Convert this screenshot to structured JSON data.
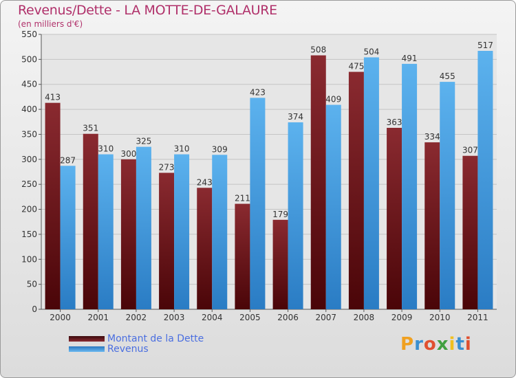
{
  "title": "Revenus/Dette - LA MOTTE-DE-GALAURE",
  "subtitle": "(en milliers d'€)",
  "legend": {
    "dette": "Montant de la Dette",
    "revenus": "Revenus"
  },
  "logo": {
    "text": "Proxiti",
    "letters": [
      {
        "ch": "P",
        "color": "#f0a020"
      },
      {
        "ch": "r",
        "color": "#3a8fd0"
      },
      {
        "ch": "o",
        "color": "#e05030"
      },
      {
        "ch": "x",
        "color": "#40a040"
      },
      {
        "ch": "i",
        "color": "#f0c020"
      },
      {
        "ch": "t",
        "color": "#3a8fd0"
      },
      {
        "ch": "i",
        "color": "#e05030"
      }
    ]
  },
  "colors": {
    "dette": "#7a1c22",
    "revenus": "#4ba3e3",
    "title": "#b0306a",
    "legend_text": "#4a6ee0"
  },
  "chart_data": {
    "type": "bar",
    "title": "Revenus/Dette - LA MOTTE-DE-GALAURE",
    "subtitle": "(en milliers d'€)",
    "xlabel": "",
    "ylabel": "",
    "ylim": [
      0,
      550
    ],
    "yticks": [
      0,
      50,
      100,
      150,
      200,
      250,
      300,
      350,
      400,
      450,
      500,
      550
    ],
    "grid": true,
    "legend_position": "bottom-left",
    "categories": [
      "2000",
      "2001",
      "2002",
      "2003",
      "2004",
      "2005",
      "2006",
      "2007",
      "2008",
      "2009",
      "2010",
      "2011"
    ],
    "series": [
      {
        "name": "Montant de la Dette",
        "values": [
          413,
          351,
          300,
          273,
          243,
          211,
          179,
          508,
          475,
          363,
          334,
          307
        ]
      },
      {
        "name": "Revenus",
        "values": [
          287,
          310,
          325,
          310,
          309,
          423,
          374,
          409,
          504,
          491,
          455,
          517
        ]
      }
    ]
  }
}
